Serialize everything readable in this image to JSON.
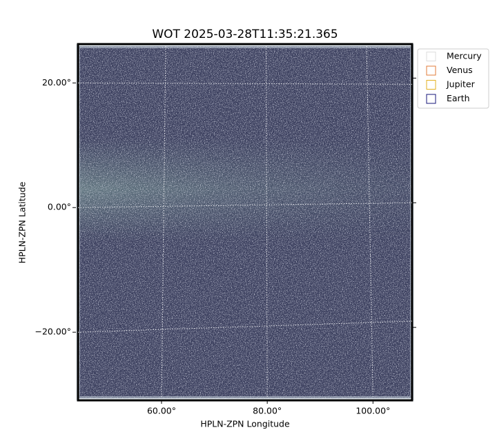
{
  "chart_data": {
    "type": "image",
    "title": "WOT 2025-03-28T11:35:21.365",
    "x_label": "HPLN-ZPN Longitude",
    "y_label": "HPLN-ZPN Latitude",
    "xlim": [
      44.2,
      107.4
    ],
    "ylim": [
      -30.6,
      25.9
    ],
    "xticks": [
      {
        "value": 60,
        "label": "60.00°"
      },
      {
        "value": 80,
        "label": "80.00°"
      },
      {
        "value": 100,
        "label": "100.00°"
      }
    ],
    "yticks": [
      {
        "value": -20,
        "label": "−20.00°"
      },
      {
        "value": 0,
        "label": "0.00°"
      },
      {
        "value": 20,
        "label": "20.00°"
      }
    ],
    "grid": true,
    "legend_loc": "upper right outside",
    "series": [
      {
        "name": "Mercury",
        "color": "#dddddd"
      },
      {
        "name": "Venus",
        "color": "#e07b39"
      },
      {
        "name": "Jupiter",
        "color": "#e3b021"
      },
      {
        "name": "Earth",
        "color": "#16167a"
      }
    ]
  }
}
